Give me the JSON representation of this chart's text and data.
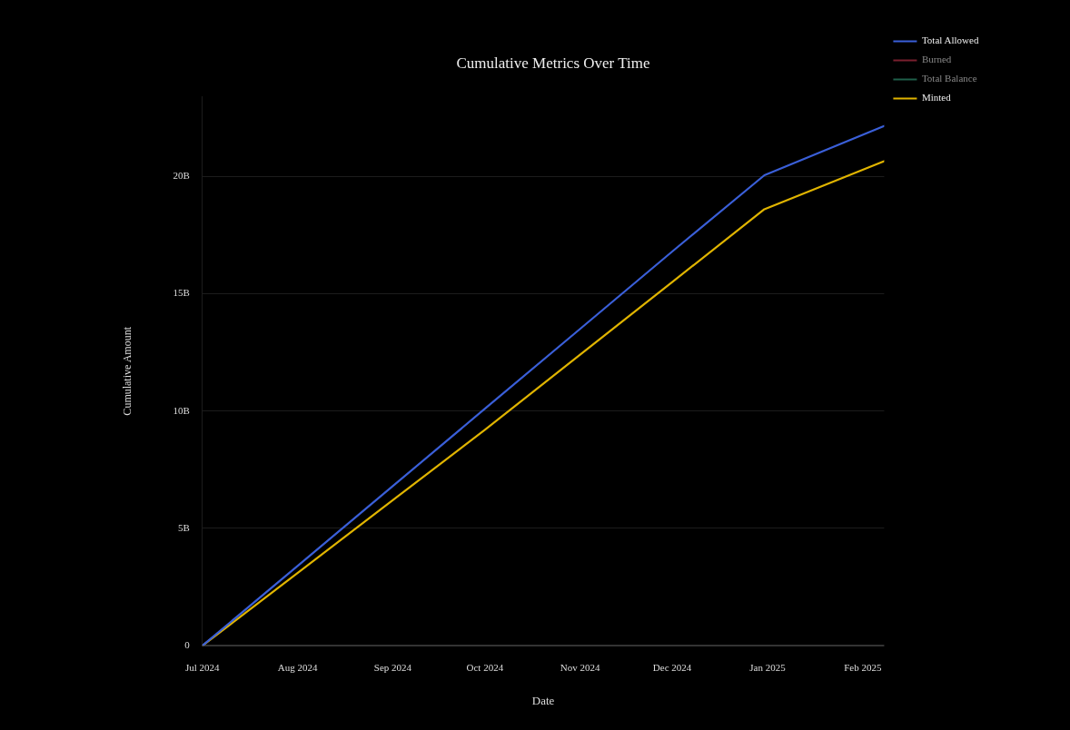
{
  "chart_data": {
    "type": "line",
    "title": "Cumulative Metrics Over Time",
    "xlabel": "Date",
    "ylabel": "Cumulative Amount",
    "x": [
      "2024-07-01",
      "2024-08-01",
      "2024-09-01",
      "2024-10-01",
      "2024-11-01",
      "2024-12-01",
      "2024-12-31",
      "2025-02-08"
    ],
    "series": [
      {
        "name": "Total Allowed",
        "color": "#3a5fd8",
        "values": [
          0,
          3400000000,
          6800000000,
          10100000000,
          13500000000,
          16800000000,
          20050000000,
          22150000000
        ]
      },
      {
        "name": "Burned",
        "color": "#7a1f2e",
        "values": [
          null,
          null,
          null,
          null,
          null,
          null,
          null,
          null
        ]
      },
      {
        "name": "Total Balance",
        "color": "#1f5f4a",
        "values": [
          null,
          null,
          null,
          null,
          null,
          null,
          null,
          null
        ]
      },
      {
        "name": "Minted",
        "color": "#e0b400",
        "values": [
          0,
          3100000000,
          6200000000,
          9200000000,
          12400000000,
          15500000000,
          18600000000,
          20650000000
        ]
      }
    ],
    "xlim": [
      "2024-07-01",
      "2025-02-08"
    ],
    "xticks": [
      {
        "value": "2024-07-01",
        "label": "Jul 2024"
      },
      {
        "value": "2024-08-01",
        "label": "Aug 2024"
      },
      {
        "value": "2024-09-01",
        "label": "Sep 2024"
      },
      {
        "value": "2024-10-01",
        "label": "Oct 2024"
      },
      {
        "value": "2024-11-01",
        "label": "Nov 2024"
      },
      {
        "value": "2024-12-01",
        "label": "Dec 2024"
      },
      {
        "value": "2025-01-01",
        "label": "Jan 2025"
      },
      {
        "value": "2025-02-01",
        "label": "Feb 2025"
      }
    ],
    "ylim": [
      0,
      23400000000
    ],
    "yticks": [
      0,
      {
        "value": 5000000000,
        "label": "5B"
      },
      {
        "value": 10000000000,
        "label": "10B"
      },
      {
        "value": 15000000000,
        "label": "15B"
      },
      {
        "value": 20000000000,
        "label": "20B"
      }
    ],
    "grid": "y",
    "legend": "top right",
    "marker": "none",
    "line_style": "solid"
  }
}
